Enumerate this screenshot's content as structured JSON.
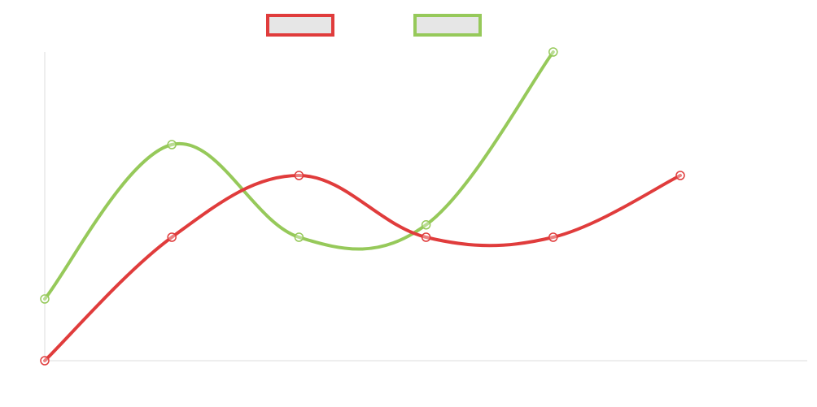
{
  "chart_data": {
    "type": "line",
    "title": "",
    "xlabel": "",
    "ylabel": "",
    "x": [
      0,
      1,
      2,
      3,
      4,
      5
    ],
    "ylim": [
      0,
      5
    ],
    "grid": false,
    "legend": {
      "placement": "top-center",
      "labels_visible": false
    },
    "series": [
      {
        "values": [
          0,
          2,
          3,
          2,
          2,
          3
        ],
        "color": "#e03c3c"
      },
      {
        "values": [
          1,
          3.5,
          2,
          2.2,
          5,
          null
        ],
        "color": "#96c95a"
      }
    ],
    "axis_color": "#dddddd",
    "legend_box_fill": "#e6e6e6"
  }
}
